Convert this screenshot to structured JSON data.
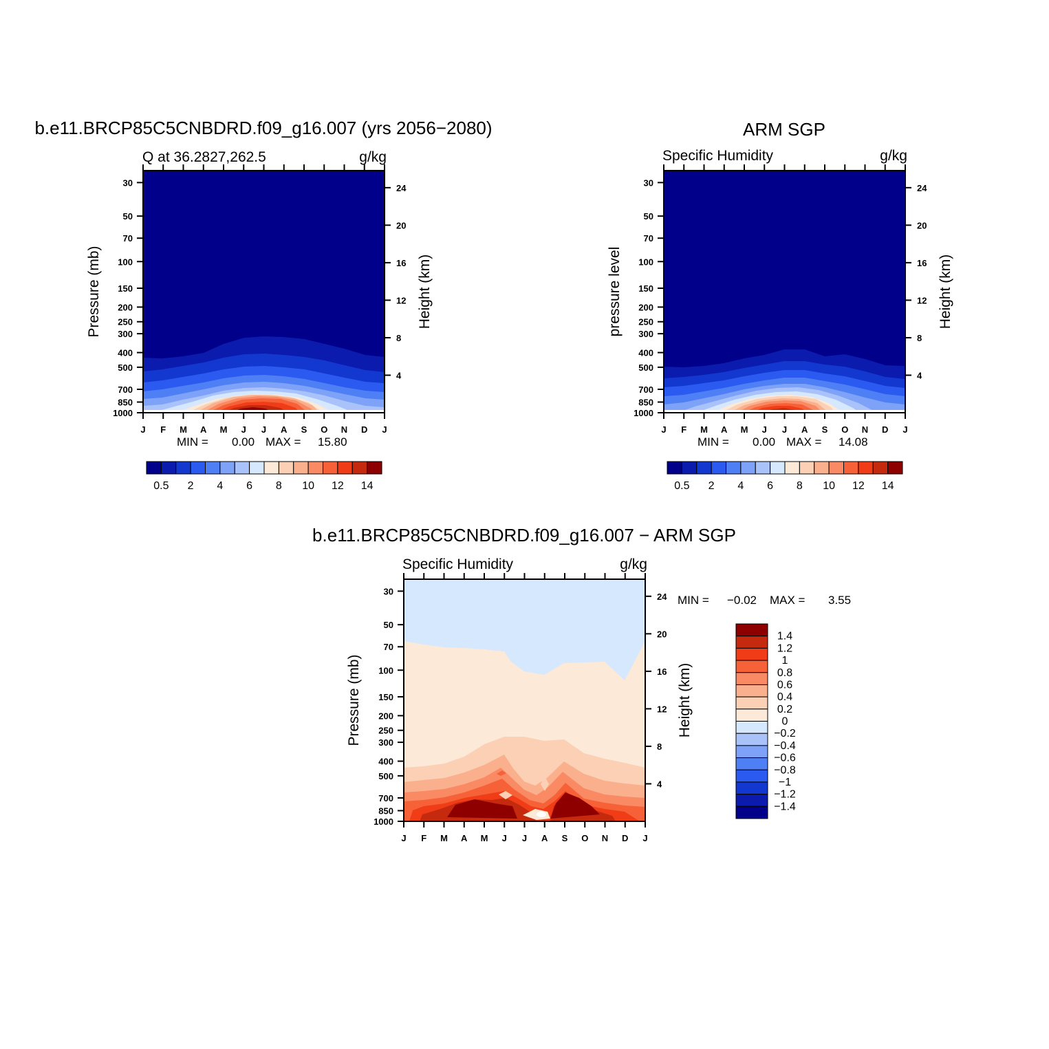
{
  "palette": [
    "#00008b",
    "#0a1bad",
    "#1238d0",
    "#2a5aef",
    "#4f7ff5",
    "#7ea2f8",
    "#a9c3fa",
    "#d5e8fd",
    "#fde9d7",
    "#fcd0b4",
    "#fbb08d",
    "#f98a64",
    "#f76137",
    "#f03d17",
    "#c62a0e",
    "#8e0000"
  ],
  "panels": [
    {
      "title": "b.e11.BRCP85C5CNBDRD.f09_g16.007 (yrs 2056−2080)",
      "left_text": "Q at 36.2827,262.5",
      "right_text": "g/kg",
      "ylabel": "Pressure (mb)",
      "ylabel2": "Height (km)",
      "min_label": "MIN =",
      "min_value": "0.00",
      "max_label": "MAX =",
      "max_value": "15.80",
      "colorbar_labels": [
        "0.5",
        "2",
        "4",
        "6",
        "8",
        "10",
        "12",
        "14"
      ]
    },
    {
      "title": "ARM SGP",
      "left_text": "Specific Humidity",
      "right_text": "g/kg",
      "ylabel": "pressure level",
      "ylabel2": "Height (km)",
      "min_label": "MIN =",
      "min_value": "0.00",
      "max_label": "MAX =",
      "max_value": "14.08",
      "colorbar_labels": [
        "0.5",
        "2",
        "4",
        "6",
        "8",
        "10",
        "12",
        "14"
      ]
    },
    {
      "title": "b.e11.BRCP85C5CNBDRD.f09_g16.007 − ARM SGP",
      "left_text": "Specific Humidity",
      "right_text": "g/kg",
      "ylabel": "Pressure (mb)",
      "ylabel2": "Height (km)",
      "min_label": "MIN =",
      "min_value": "−0.02",
      "max_label": "MAX =",
      "max_value": "3.55",
      "colorbar_labels": [
        "1.4",
        "1.2",
        "1",
        "0.8",
        "0.6",
        "0.4",
        "0.2",
        "0",
        "−0.2",
        "−0.4",
        "−0.6",
        "−0.8",
        "−1",
        "−1.2",
        "−1.4"
      ]
    }
  ],
  "chart_data": [
    {
      "type": "heatmap",
      "title": "b.e11.BRCP85C5CNBDRD.f09_g16.007 (yrs 2056−2080)",
      "variable": "Q at 36.2827,262.5",
      "units": "g/kg",
      "xlabel": "",
      "ylabel": "Pressure (mb)",
      "ylabel_right": "Height (km)",
      "x_ticks": [
        "J",
        "F",
        "M",
        "A",
        "M",
        "J",
        "J",
        "A",
        "S",
        "O",
        "N",
        "D",
        "J"
      ],
      "y_ticks": [
        30,
        50,
        70,
        100,
        150,
        200,
        250,
        300,
        400,
        500,
        700,
        850,
        1000
      ],
      "y2_ticks": [
        4,
        8,
        12,
        16,
        20,
        24
      ],
      "ylim": [
        1000,
        25
      ],
      "y_scale": "log",
      "contour_levels": [
        0.5,
        2,
        4,
        6,
        8,
        10,
        12,
        14
      ],
      "min": 0.0,
      "max": 15.8,
      "months": [
        "Jan",
        "Feb",
        "Mar",
        "Apr",
        "May",
        "Jun",
        "Jul",
        "Aug",
        "Sep",
        "Oct",
        "Nov",
        "Dec"
      ],
      "surface_q_by_month": [
        4.0,
        4.5,
        6.5,
        8.5,
        12.5,
        15.8,
        15.5,
        14.5,
        11.5,
        8.0,
        5.5,
        4.2
      ],
      "moist_top_mb_by_month": [
        420,
        410,
        400,
        340,
        305,
        300,
        305,
        310,
        330,
        370,
        400,
        420
      ]
    },
    {
      "type": "heatmap",
      "title": "ARM SGP",
      "variable": "Specific Humidity",
      "units": "g/kg",
      "xlabel": "",
      "ylabel": "pressure level",
      "ylabel_right": "Height (km)",
      "x_ticks": [
        "J",
        "F",
        "M",
        "A",
        "M",
        "J",
        "J",
        "A",
        "S",
        "O",
        "N",
        "D",
        "J"
      ],
      "y_ticks": [
        30,
        50,
        70,
        100,
        150,
        200,
        250,
        300,
        400,
        500,
        700,
        850,
        1000
      ],
      "y2_ticks": [
        4,
        8,
        12,
        16,
        20,
        24
      ],
      "ylim": [
        1000,
        25
      ],
      "y_scale": "log",
      "contour_levels": [
        0.5,
        2,
        4,
        6,
        8,
        10,
        12,
        14
      ],
      "min": 0.0,
      "max": 14.08,
      "months": [
        "Jan",
        "Feb",
        "Mar",
        "Apr",
        "May",
        "Jun",
        "Jul",
        "Aug",
        "Sep",
        "Oct",
        "Nov",
        "Dec"
      ],
      "surface_q_by_month": [
        3.5,
        4.0,
        5.5,
        7.5,
        10.5,
        13.0,
        14.08,
        13.5,
        10.5,
        7.0,
        5.0,
        3.8
      ],
      "moist_top_mb_by_month": [
        490,
        485,
        475,
        440,
        410,
        380,
        375,
        400,
        410,
        450,
        480,
        490
      ]
    },
    {
      "type": "heatmap",
      "title": "b.e11.BRCP85C5CNBDRD.f09_g16.007 − ARM SGP",
      "variable": "Specific Humidity",
      "units": "g/kg",
      "xlabel": "",
      "ylabel": "Pressure (mb)",
      "ylabel_right": "Height (km)",
      "x_ticks": [
        "J",
        "F",
        "M",
        "A",
        "M",
        "J",
        "J",
        "A",
        "S",
        "O",
        "N",
        "D",
        "J"
      ],
      "y_ticks": [
        30,
        50,
        70,
        100,
        150,
        200,
        250,
        300,
        400,
        500,
        700,
        850,
        1000
      ],
      "y2_ticks": [
        4,
        8,
        12,
        16,
        20,
        24
      ],
      "ylim": [
        1000,
        25
      ],
      "y_scale": "log",
      "contour_levels": [
        -1.4,
        -1.2,
        -1,
        -0.8,
        -0.6,
        -0.4,
        -0.2,
        0,
        0.2,
        0.4,
        0.6,
        0.8,
        1,
        1.2,
        1.4
      ],
      "min": -0.02,
      "max": 3.55,
      "months": [
        "Jan",
        "Feb",
        "Mar",
        "Apr",
        "May",
        "Jun",
        "Jul",
        "Aug",
        "Sep",
        "Oct",
        "Nov",
        "Dec"
      ],
      "zero_contour_mb_by_month": [
        70,
        75,
        80,
        80,
        85,
        95,
        115,
        120,
        95,
        90,
        85,
        125
      ],
      "surface_diff_by_month": [
        0.9,
        1.0,
        1.3,
        1.6,
        1.6,
        1.5,
        0.6,
        0.2,
        1.6,
        1.2,
        0.9,
        0.7
      ]
    }
  ]
}
